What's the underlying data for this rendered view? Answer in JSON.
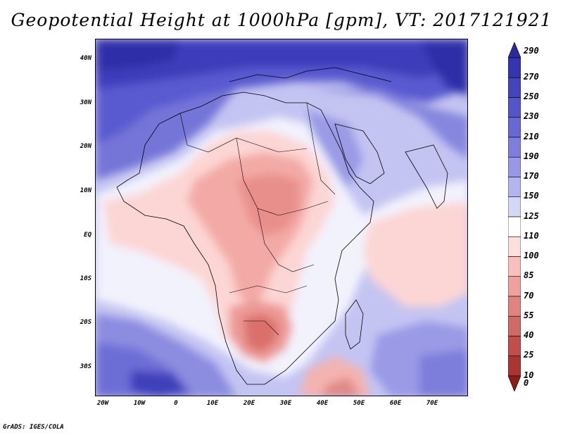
{
  "title": "Geopotential Height at 1000hPa [gpm], VT: 2017121921",
  "credit": "GrADS: IGES/COLA",
  "lat_labels": [
    "40N",
    "30N",
    "20N",
    "10N",
    "EQ",
    "10S",
    "20S",
    "30S"
  ],
  "lon_labels": [
    "20W",
    "10W",
    "0",
    "10E",
    "20E",
    "30E",
    "40E",
    "50E",
    "60E",
    "70E"
  ],
  "colorbar": {
    "labels": [
      "290",
      "270",
      "250",
      "230",
      "210",
      "190",
      "170",
      "150",
      "125",
      "110",
      "100",
      "85",
      "70",
      "55",
      "40",
      "25",
      "10",
      "0"
    ],
    "colors": [
      "#2a2a9e",
      "#3535b0",
      "#4444bd",
      "#5555c8",
      "#6868d2",
      "#7e7edc",
      "#9898e6",
      "#b4b4ef",
      "#d6d6f7",
      "#ffffff",
      "#fde0de",
      "#f8bfbc",
      "#eea19d",
      "#e08480",
      "#d06a66",
      "#c04f4c",
      "#ab3532",
      "#8e1b18"
    ]
  },
  "map": {
    "extent": {
      "lon": [
        -22,
        80
      ],
      "lat": [
        -37,
        45
      ]
    },
    "field": "Geopotential Height at 1000hPa",
    "units": "gpm",
    "valid_time": "2017121921"
  }
}
